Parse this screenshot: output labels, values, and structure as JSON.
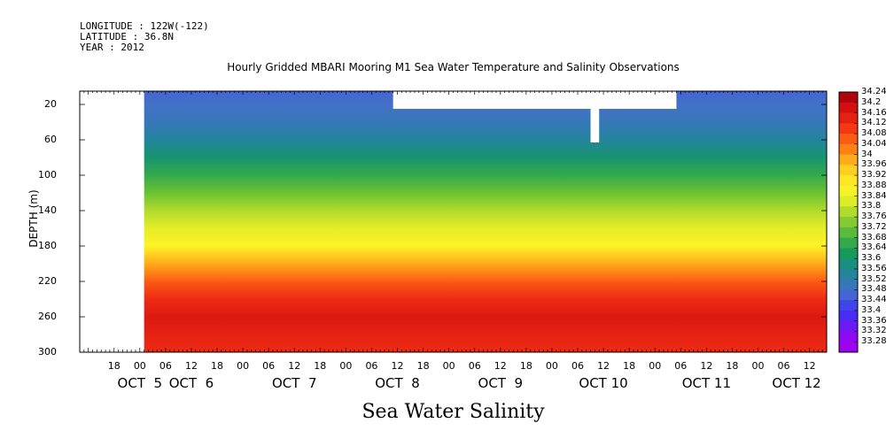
{
  "header": {
    "longitude": "LONGITUDE : 122W(-122)",
    "latitude": "LATITUDE : 36.8N",
    "year": "YEAR : 2012",
    "title": "Hourly Gridded MBARI Mooring M1 Sea Water Temperature and Salinity Observations"
  },
  "chart_data": {
    "type": "heatmap",
    "title": "Hourly Gridded MBARI Mooring M1 Sea Water Temperature and Salinity Observations",
    "subtitle": "Sea Water Salinity",
    "ylabel": "DEPTH (m)",
    "xlabel": "",
    "y_ticks": [
      "20",
      "60",
      "100",
      "140",
      "180",
      "220",
      "260",
      "300"
    ],
    "ylim": [
      5,
      300
    ],
    "y_inverted": true,
    "x_hour_ticks": [
      "18",
      "00",
      "06",
      "12",
      "18",
      "00",
      "06",
      "12",
      "18",
      "00",
      "06",
      "12",
      "18",
      "00",
      "06",
      "12",
      "18",
      "00",
      "06",
      "12",
      "18",
      "00",
      "06",
      "12",
      "18",
      "00",
      "06",
      "12"
    ],
    "x_hour_values": [
      -6,
      0,
      6,
      12,
      18,
      24,
      30,
      36,
      42,
      48,
      54,
      60,
      66,
      72,
      78,
      84,
      90,
      96,
      102,
      108,
      114,
      120,
      126,
      132,
      138,
      144,
      150,
      156
    ],
    "x_date_labels": [
      {
        "text": "OCT  5",
        "hour": 0
      },
      {
        "text": "OCT  6",
        "hour": 12
      },
      {
        "text": "OCT  7",
        "hour": 36
      },
      {
        "text": "OCT  8",
        "hour": 60
      },
      {
        "text": "OCT  9",
        "hour": 84
      },
      {
        "text": "OCT 10",
        "hour": 108
      },
      {
        "text": "OCT 11",
        "hour": 132
      },
      {
        "text": "OCT 12",
        "hour": 153
      }
    ],
    "xlim_hours": [
      -14,
      160
    ],
    "data_start_hour": 1,
    "colorbar_levels": [
      "34.24",
      "34.2",
      "34.16",
      "34.12",
      "34.08",
      "34.04",
      "34",
      "33.96",
      "33.92",
      "33.88",
      "33.84",
      "33.8",
      "33.76",
      "33.72",
      "33.68",
      "33.64",
      "33.6",
      "33.56",
      "33.52",
      "33.48",
      "33.44",
      "33.4",
      "33.36",
      "33.32",
      "33.28"
    ],
    "depth_profile": [
      {
        "depth": 5,
        "salinity": 33.46
      },
      {
        "depth": 20,
        "salinity": 33.48
      },
      {
        "depth": 40,
        "salinity": 33.5
      },
      {
        "depth": 60,
        "salinity": 33.54
      },
      {
        "depth": 80,
        "salinity": 33.6
      },
      {
        "depth": 100,
        "salinity": 33.66
      },
      {
        "depth": 120,
        "salinity": 33.72
      },
      {
        "depth": 140,
        "salinity": 33.78
      },
      {
        "depth": 160,
        "salinity": 33.83
      },
      {
        "depth": 180,
        "salinity": 33.88
      },
      {
        "depth": 200,
        "salinity": 33.98
      },
      {
        "depth": 220,
        "salinity": 34.06
      },
      {
        "depth": 240,
        "salinity": 34.12
      },
      {
        "depth": 260,
        "salinity": 34.16
      },
      {
        "depth": 280,
        "salinity": 34.14
      },
      {
        "depth": 300,
        "salinity": 34.12
      }
    ],
    "missing_data": [
      {
        "hour_start": 59,
        "hour_end": 125,
        "depth_start": 5,
        "depth_end": 25
      },
      {
        "hour_start": 105,
        "hour_end": 107,
        "depth_start": 25,
        "depth_end": 63
      }
    ],
    "grid": false
  }
}
